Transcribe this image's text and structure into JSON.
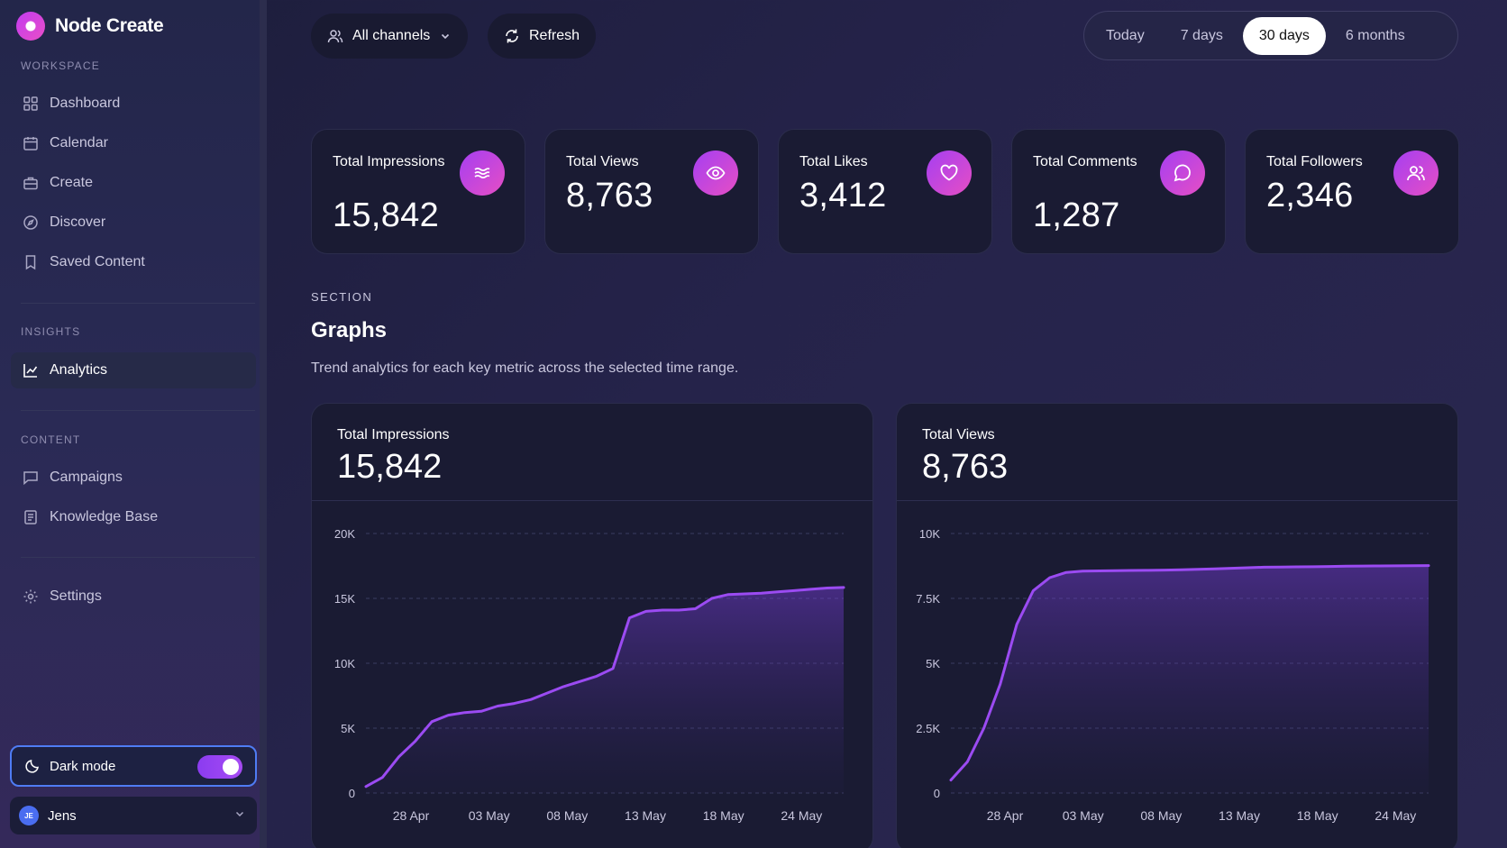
{
  "app": {
    "name": "Node Create"
  },
  "sidebar": {
    "workspace_label": "WORKSPACE",
    "workspace_items": [
      {
        "label": "Dashboard",
        "icon": "grid-icon"
      },
      {
        "label": "Calendar",
        "icon": "calendar-icon"
      },
      {
        "label": "Create",
        "icon": "briefcase-icon"
      },
      {
        "label": "Discover",
        "icon": "compass-icon"
      },
      {
        "label": "Saved Content",
        "icon": "bookmark-icon"
      }
    ],
    "insights_label": "INSIGHTS",
    "insights_items": [
      {
        "label": "Analytics",
        "icon": "chart-line-icon",
        "active": true
      }
    ],
    "content_label": "CONTENT",
    "content_items": [
      {
        "label": "Campaigns",
        "icon": "message-square-icon"
      },
      {
        "label": "Knowledge Base",
        "icon": "book-icon"
      }
    ],
    "settings_label": "Settings",
    "dark_mode_label": "Dark mode",
    "dark_mode_on": true,
    "user": {
      "initials": "JE",
      "name": "Jens"
    }
  },
  "toolbar": {
    "channels_label": "All channels",
    "refresh_label": "Refresh",
    "ranges": [
      "Today",
      "7 days",
      "30 days",
      "6 months"
    ],
    "active_range": "30 days"
  },
  "kpis": [
    {
      "label": "Total Impressions",
      "value": "15,842",
      "icon": "waves-icon"
    },
    {
      "label": "Total Views",
      "value": "8,763",
      "icon": "eye-icon"
    },
    {
      "label": "Total Likes",
      "value": "3,412",
      "icon": "heart-icon"
    },
    {
      "label": "Total Comments",
      "value": "1,287",
      "icon": "chat-bubble-icon"
    },
    {
      "label": "Total Followers",
      "value": "2,346",
      "icon": "users-icon"
    }
  ],
  "section": {
    "kicker": "SECTION",
    "title": "Graphs",
    "description": "Trend analytics for each key metric across the selected time range."
  },
  "colors": {
    "accent": "#9b4bf2",
    "accent_pink": "#e64ec4",
    "card": "#1a1b33"
  },
  "chart_data": [
    {
      "type": "area",
      "title": "Total Impressions",
      "value_label": "15,842",
      "x_ticks": [
        "28 Apr",
        "03 May",
        "08 May",
        "13 May",
        "18 May",
        "24 May"
      ],
      "y_ticks": [
        "0",
        "5K",
        "10K",
        "15K",
        "20K"
      ],
      "ylim": [
        0,
        20000
      ],
      "grid": true,
      "x": [
        0,
        1,
        2,
        3,
        4,
        5,
        6,
        7,
        8,
        9,
        10,
        11,
        12,
        13,
        14,
        15,
        16,
        17,
        18,
        19,
        20,
        21,
        22,
        23,
        24,
        25,
        26,
        27,
        28,
        29
      ],
      "values": [
        500,
        1200,
        2800,
        4000,
        5500,
        6000,
        6200,
        6300,
        6700,
        6900,
        7200,
        7700,
        8200,
        8600,
        9000,
        9600,
        13500,
        14000,
        14100,
        14100,
        14200,
        15000,
        15300,
        15350,
        15400,
        15500,
        15600,
        15700,
        15800,
        15842
      ]
    },
    {
      "type": "area",
      "title": "Total Views",
      "value_label": "8,763",
      "x_ticks": [
        "28 Apr",
        "03 May",
        "08 May",
        "13 May",
        "18 May",
        "24 May"
      ],
      "y_ticks": [
        "0",
        "2.5K",
        "5K",
        "7.5K",
        "10K"
      ],
      "ylim": [
        0,
        10000
      ],
      "grid": true,
      "x": [
        0,
        1,
        2,
        3,
        4,
        5,
        6,
        7,
        8,
        9,
        10,
        11,
        12,
        13,
        14,
        15,
        16,
        17,
        18,
        19,
        20,
        21,
        22,
        23,
        24,
        25,
        26,
        27,
        28,
        29
      ],
      "values": [
        500,
        1200,
        2500,
        4200,
        6500,
        7800,
        8300,
        8500,
        8550,
        8560,
        8570,
        8575,
        8580,
        8590,
        8600,
        8620,
        8640,
        8660,
        8680,
        8700,
        8710,
        8715,
        8720,
        8730,
        8740,
        8745,
        8750,
        8755,
        8760,
        8763
      ]
    }
  ]
}
